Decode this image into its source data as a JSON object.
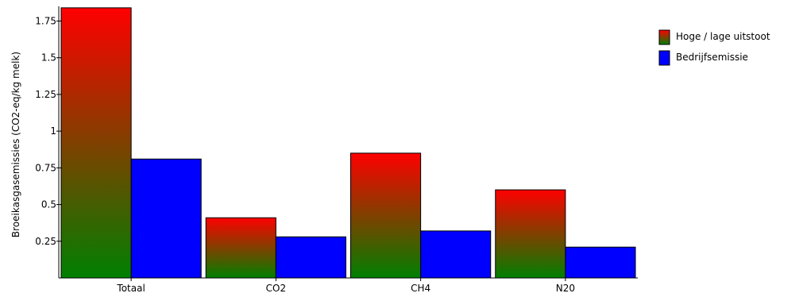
{
  "chart_data": {
    "type": "bar",
    "title": "",
    "xlabel": "",
    "ylabel": "Broeikasgasemissies (CO2-eq/kg melk)",
    "categories": [
      "Totaal",
      "CO2",
      "CH4",
      "N20"
    ],
    "series": [
      {
        "name": "Hoge / lage uitstoot",
        "values": [
          1.84,
          0.41,
          0.85,
          0.6
        ],
        "color_top": "#ff0000",
        "color_bottom": "#008000"
      },
      {
        "name": "Bedrijfsemissie",
        "values": [
          0.81,
          0.28,
          0.32,
          0.21
        ],
        "color": "#0000ff"
      }
    ],
    "ylim": [
      0,
      1.85
    ],
    "yticks": [
      0.25,
      0.5,
      0.75,
      1,
      1.25,
      1.5,
      1.75
    ],
    "ytick_labels": [
      "0.25",
      "0.5",
      "0.75",
      "1",
      "1.25",
      "1.5",
      "1.75"
    ],
    "grid": false,
    "legend_position": "top-right"
  }
}
